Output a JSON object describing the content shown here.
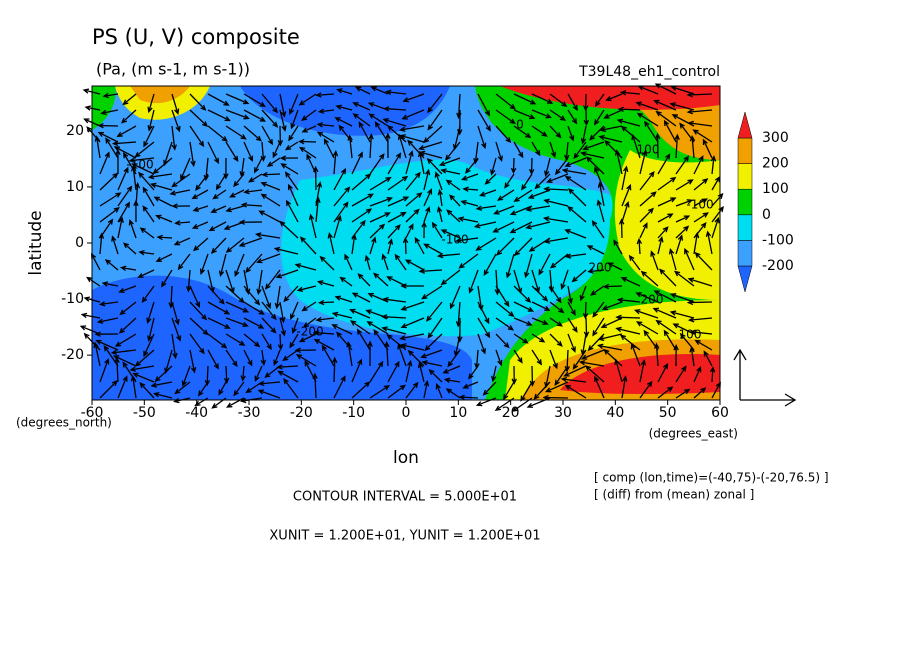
{
  "chart_data": {
    "type": "contour",
    "title": "PS (U, V) composite",
    "subtitle": "(Pa, (m s-1, m s-1))",
    "experiment": "T39L48_eh1_control",
    "x_label": "lon",
    "y_label": "latitude",
    "y_unit": "(degrees_north)",
    "x_unit": "(degrees_east)",
    "notes": [
      "[ comp (lon,time)=(-40,75)-(-20,76.5) ]",
      "[ (diff) from (mean) zonal ]"
    ],
    "contour_interval": "CONTOUR INTERVAL = 5.000E+01",
    "vector_units": "XUNIT = 1.200E+01, YUNIT = 1.200E+01",
    "xlim": [
      -60,
      60
    ],
    "ylim": [
      -28,
      28
    ],
    "xticks": [
      -60,
      -50,
      -40,
      -30,
      -20,
      -10,
      0,
      10,
      20,
      30,
      40,
      50,
      60
    ],
    "yticks": [
      -20,
      -10,
      0,
      10,
      20
    ],
    "levels": [
      -200,
      -100,
      0,
      100,
      200,
      300
    ],
    "colors": [
      "#1e64ff",
      "#3ca0ff",
      "#00dcf0",
      "#00d200",
      "#f0f000",
      "#f0a000",
      "#f01e1e"
    ],
    "contour_labels": [
      -100,
      -100,
      -200,
      -100,
      100,
      200,
      100,
      200,
      0
    ]
  }
}
